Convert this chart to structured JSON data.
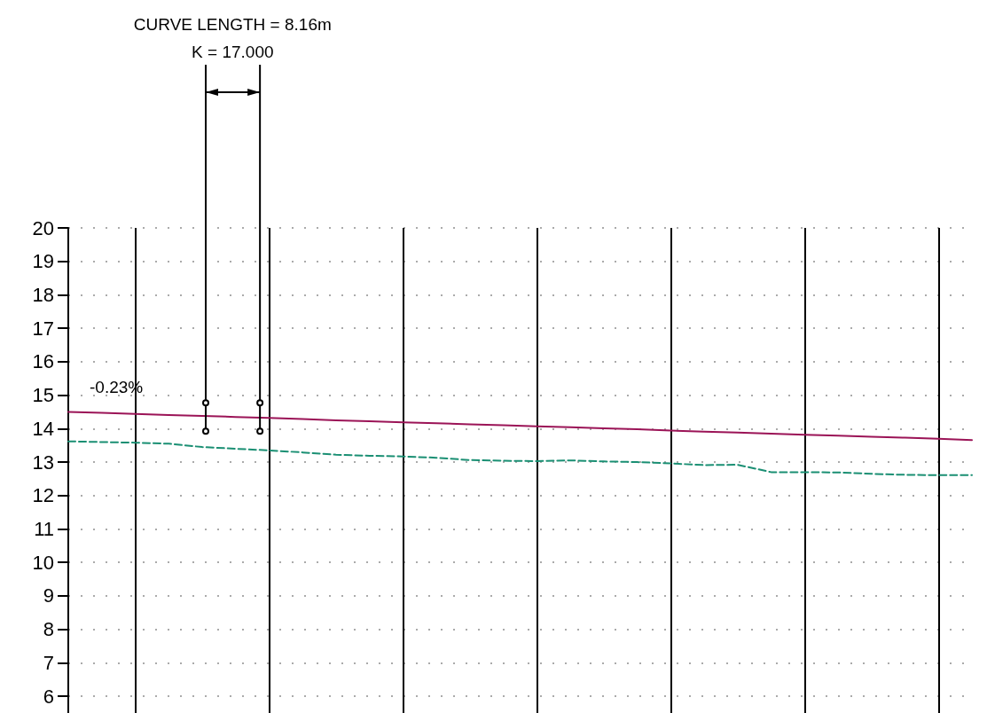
{
  "chart_data": {
    "type": "line",
    "categories": [
      null,
      null,
      null,
      null,
      null,
      null,
      null,
      null,
      null,
      null,
      null,
      null,
      null,
      null,
      null,
      null,
      null,
      null,
      null,
      null,
      null,
      null,
      null,
      null,
      null,
      null,
      null,
      null
    ],
    "series": [
      {
        "color": "#9b1457",
        "line_style": "solid",
        "values": [
          14.5,
          14.47,
          14.44,
          14.41,
          14.38,
          14.35,
          14.32,
          14.29,
          14.25,
          14.22,
          14.19,
          14.16,
          14.13,
          14.1,
          14.07,
          14.04,
          14.01,
          13.98,
          13.94,
          13.91,
          13.88,
          13.85,
          13.82,
          13.79,
          13.76,
          13.73,
          13.7,
          13.66
        ]
      },
      {
        "color": "#1a8f73",
        "line_style": "dashed",
        "values": [
          13.62,
          13.6,
          13.58,
          13.55,
          13.45,
          13.4,
          13.35,
          13.29,
          13.22,
          13.19,
          13.17,
          13.13,
          13.06,
          13.04,
          13.03,
          13.05,
          13.02,
          13.0,
          12.96,
          12.91,
          12.92,
          12.7,
          12.7,
          12.69,
          12.65,
          12.62,
          12.61,
          12.61
        ]
      }
    ],
    "ylim": [
      5.5,
      20
    ],
    "yticks": [
      6,
      7,
      8,
      9,
      10,
      11,
      12,
      13,
      14,
      15,
      16,
      17,
      18,
      19,
      20
    ],
    "grid": true,
    "tick_labels": "y",
    "marker": "none",
    "annotations": [
      "CURVE LENGTH = 8.16m",
      "K = 17.000",
      "-0.23%"
    ]
  }
}
